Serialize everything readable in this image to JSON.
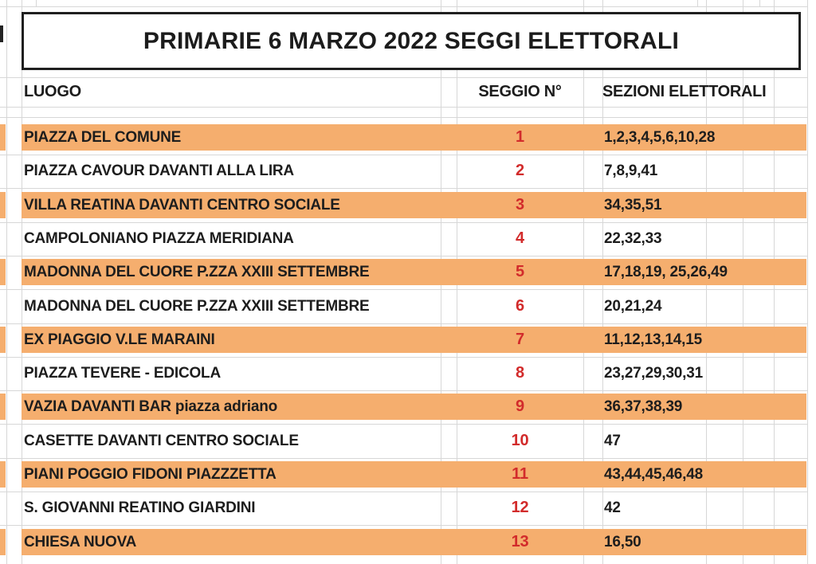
{
  "title": "PRIMARIE 6 MARZO 2022 SEGGI ELETTORALI",
  "columns": {
    "luogo": "LUOGO",
    "seggio": "SEGGIO N°",
    "sezioni": "SEZIONI ELETTORALI"
  },
  "colors": {
    "highlight_orange": "#f5ae6e",
    "number_red": "#d22b2b",
    "text_dark": "#1d1d1d"
  },
  "rows": [
    {
      "luogo": "PIAZZA DEL COMUNE",
      "seggio": "1",
      "sezioni": "1,2,3,4,5,6,10,28",
      "highlight": true
    },
    {
      "luogo": "PIAZZA CAVOUR DAVANTI ALLA LIRA",
      "seggio": "2",
      "sezioni": "7,8,9,41",
      "highlight": false
    },
    {
      "luogo": "VILLA REATINA DAVANTI CENTRO SOCIALE",
      "seggio": "3",
      "sezioni": "34,35,51",
      "highlight": true
    },
    {
      "luogo": "CAMPOLONIANO PIAZZA MERIDIANA",
      "seggio": "4",
      "sezioni": "22,32,33",
      "highlight": false
    },
    {
      "luogo": "MADONNA DEL CUORE P.ZZA XXIII SETTEMBRE",
      "seggio": "5",
      "sezioni": "17,18,19, 25,26,49",
      "highlight": true
    },
    {
      "luogo": "MADONNA DEL CUORE P.ZZA XXIII SETTEMBRE",
      "seggio": "6",
      "sezioni": "20,21,24",
      "highlight": false
    },
    {
      "luogo": "EX PIAGGIO V.LE MARAINI",
      "seggio": "7",
      "sezioni": "11,12,13,14,15",
      "highlight": true
    },
    {
      "luogo": "PIAZZA TEVERE - EDICOLA",
      "seggio": "8",
      "sezioni": "23,27,29,30,31",
      "highlight": false
    },
    {
      "luogo": "VAZIA DAVANTI BAR piazza adriano",
      "seggio": "9",
      "sezioni": "36,37,38,39",
      "highlight": true
    },
    {
      "luogo": "CASETTE DAVANTI CENTRO SOCIALE",
      "seggio": "10",
      "sezioni": "47",
      "highlight": false
    },
    {
      "luogo": "PIANI POGGIO FIDONI PIAZZZETTA",
      "seggio": "11",
      "sezioni": "43,44,45,46,48",
      "highlight": true
    },
    {
      "luogo": "S. GIOVANNI REATINO GIARDINI",
      "seggio": "12",
      "sezioni": "42",
      "highlight": false
    },
    {
      "luogo": "CHIESA NUOVA",
      "seggio": "13",
      "sezioni": "16,50",
      "highlight": true
    }
  ]
}
